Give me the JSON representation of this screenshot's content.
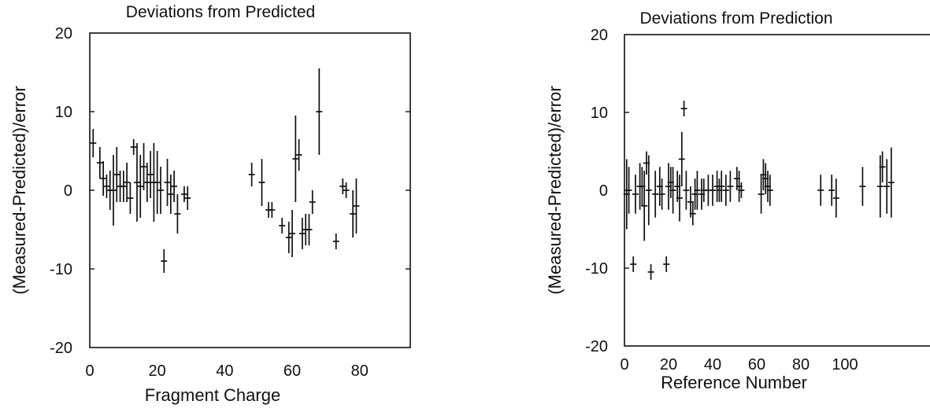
{
  "chart_data": [
    {
      "type": "scatter",
      "title": "Deviations from Predicted",
      "xlabel": "Fragment Charge",
      "ylabel": "(Measured-Predicted)/error",
      "xlim": [
        0,
        95
      ],
      "ylim": [
        -20,
        20
      ],
      "xticks": [
        "0",
        "20",
        "40",
        "60",
        "80"
      ],
      "xtick_values": [
        0,
        20,
        40,
        60,
        80
      ],
      "yticks": [
        "20",
        "10",
        "0",
        "-10",
        "-20"
      ],
      "ytick_values": [
        20,
        10,
        0,
        -10,
        -20
      ],
      "grid": false,
      "series": [
        {
          "points": [
            {
              "x": 1,
              "y": 6,
              "err": 1.8
            },
            {
              "x": 3,
              "y": 3.5,
              "err": 2
            },
            {
              "x": 4,
              "y": 1.5,
              "err": 2.2
            },
            {
              "x": 5,
              "y": 0.5,
              "err": 1.5
            },
            {
              "x": 6,
              "y": 0,
              "err": 2.5
            },
            {
              "x": 7,
              "y": 0,
              "err": 4.5
            },
            {
              "x": 8,
              "y": 2,
              "err": 3.5
            },
            {
              "x": 9,
              "y": 0.5,
              "err": 2
            },
            {
              "x": 10,
              "y": 0.5,
              "err": 2
            },
            {
              "x": 11,
              "y": 1,
              "err": 2.5
            },
            {
              "x": 12,
              "y": -1,
              "err": 2
            },
            {
              "x": 13,
              "y": 5.5,
              "err": 1
            },
            {
              "x": 14,
              "y": 1,
              "err": 5
            },
            {
              "x": 15,
              "y": 0.5,
              "err": 4
            },
            {
              "x": 16,
              "y": 3,
              "err": 3
            },
            {
              "x": 17,
              "y": 1,
              "err": 2.5
            },
            {
              "x": 18,
              "y": 2,
              "err": 3
            },
            {
              "x": 19,
              "y": 1,
              "err": 5
            },
            {
              "x": 20,
              "y": 1,
              "err": 4
            },
            {
              "x": 21,
              "y": 0,
              "err": 3
            },
            {
              "x": 22,
              "y": -9,
              "err": 1.5
            },
            {
              "x": 23,
              "y": 1,
              "err": 3
            },
            {
              "x": 24,
              "y": -0.5,
              "err": 2.5
            },
            {
              "x": 25,
              "y": 0.5,
              "err": 2
            },
            {
              "x": 26,
              "y": -3,
              "err": 2.5
            },
            {
              "x": 28,
              "y": -0.5,
              "err": 1
            },
            {
              "x": 29,
              "y": -1,
              "err": 1.5
            },
            {
              "x": 48,
              "y": 2,
              "err": 1.5
            },
            {
              "x": 51,
              "y": 1,
              "err": 3
            },
            {
              "x": 53,
              "y": -2.5,
              "err": 1
            },
            {
              "x": 54,
              "y": -2.5,
              "err": 1
            },
            {
              "x": 57,
              "y": -4.5,
              "err": 1
            },
            {
              "x": 59,
              "y": -6,
              "err": 2
            },
            {
              "x": 60,
              "y": -5.5,
              "err": 3
            },
            {
              "x": 61,
              "y": 4,
              "err": 5.5
            },
            {
              "x": 62,
              "y": 4.5,
              "err": 2
            },
            {
              "x": 63,
              "y": -5.5,
              "err": 2
            },
            {
              "x": 64,
              "y": -5,
              "err": 2
            },
            {
              "x": 65,
              "y": -5,
              "err": 2
            },
            {
              "x": 66,
              "y": -1.5,
              "err": 1.5
            },
            {
              "x": 68,
              "y": 10,
              "err": 5.5
            },
            {
              "x": 73,
              "y": -6.5,
              "err": 1
            },
            {
              "x": 75,
              "y": 0.5,
              "err": 1
            },
            {
              "x": 76,
              "y": 0,
              "err": 1
            },
            {
              "x": 78,
              "y": -3,
              "err": 3
            },
            {
              "x": 79,
              "y": -2,
              "err": 3.5
            }
          ]
        }
      ]
    },
    {
      "type": "scatter",
      "title": "Deviations from Prediction",
      "xlabel": "Reference Number",
      "ylabel": "(Measured-Predicted)/error",
      "xlim": [
        0,
        150
      ],
      "ylim": [
        -20,
        20
      ],
      "xticks": [
        "0",
        "20",
        "40",
        "60",
        "80",
        "100"
      ],
      "xtick_values": [
        0,
        20,
        40,
        60,
        80,
        100
      ],
      "yticks": [
        "20",
        "10",
        "0",
        "-10",
        "-20"
      ],
      "ytick_values": [
        20,
        10,
        0,
        -10,
        -20
      ],
      "grid": false,
      "series": [
        {
          "points": [
            {
              "x": 1,
              "y": -0.5,
              "err": 4.5
            },
            {
              "x": 2,
              "y": 0,
              "err": 3
            },
            {
              "x": 4,
              "y": -9.5,
              "err": 1
            },
            {
              "x": 5,
              "y": -0.5,
              "err": 2.5
            },
            {
              "x": 7,
              "y": 0.5,
              "err": 3
            },
            {
              "x": 8,
              "y": 0.5,
              "err": 2.5
            },
            {
              "x": 9,
              "y": -2,
              "err": 4.5
            },
            {
              "x": 10,
              "y": 3.5,
              "err": 1.5
            },
            {
              "x": 11,
              "y": 0,
              "err": 4.5
            },
            {
              "x": 12,
              "y": -10.5,
              "err": 1
            },
            {
              "x": 14,
              "y": -0.5,
              "err": 3
            },
            {
              "x": 16,
              "y": 0.5,
              "err": 2.5
            },
            {
              "x": 17,
              "y": -0.5,
              "err": 2
            },
            {
              "x": 19,
              "y": -9.5,
              "err": 1
            },
            {
              "x": 20,
              "y": 0.5,
              "err": 3
            },
            {
              "x": 21,
              "y": 1,
              "err": 2
            },
            {
              "x": 22,
              "y": 0,
              "err": 3
            },
            {
              "x": 24,
              "y": 0.5,
              "err": 2
            },
            {
              "x": 25,
              "y": -1,
              "err": 3
            },
            {
              "x": 26,
              "y": 4,
              "err": 3.5
            },
            {
              "x": 27,
              "y": 10.5,
              "err": 1
            },
            {
              "x": 28,
              "y": 0,
              "err": 2.5
            },
            {
              "x": 30,
              "y": -1.5,
              "err": 2
            },
            {
              "x": 31,
              "y": -3,
              "err": 1.5
            },
            {
              "x": 32,
              "y": -0.5,
              "err": 2
            },
            {
              "x": 33,
              "y": 0,
              "err": 2.5
            },
            {
              "x": 35,
              "y": -0.5,
              "err": 2
            },
            {
              "x": 36,
              "y": 0,
              "err": 1.5
            },
            {
              "x": 38,
              "y": 0,
              "err": 2
            },
            {
              "x": 40,
              "y": 0,
              "err": 2
            },
            {
              "x": 42,
              "y": 0.5,
              "err": 2
            },
            {
              "x": 43,
              "y": 0,
              "err": 1.5
            },
            {
              "x": 44,
              "y": 0.5,
              "err": 2
            },
            {
              "x": 46,
              "y": 0,
              "err": 2
            },
            {
              "x": 48,
              "y": 0.5,
              "err": 2
            },
            {
              "x": 51,
              "y": 1.5,
              "err": 1.5
            },
            {
              "x": 52,
              "y": 0.5,
              "err": 2
            },
            {
              "x": 53,
              "y": 0,
              "err": 1
            },
            {
              "x": 62,
              "y": -0.5,
              "err": 2.5
            },
            {
              "x": 63,
              "y": 2,
              "err": 2
            },
            {
              "x": 64,
              "y": 1.5,
              "err": 2
            },
            {
              "x": 65,
              "y": 0.5,
              "err": 2
            },
            {
              "x": 66,
              "y": 0,
              "err": 2
            },
            {
              "x": 89,
              "y": 0,
              "err": 2
            },
            {
              "x": 94,
              "y": 0,
              "err": 2
            },
            {
              "x": 96,
              "y": -1,
              "err": 2.5
            },
            {
              "x": 108,
              "y": 0.5,
              "err": 2.5
            },
            {
              "x": 116,
              "y": 0.5,
              "err": 4
            },
            {
              "x": 117,
              "y": 3,
              "err": 2
            },
            {
              "x": 119,
              "y": 0.5,
              "err": 3.5
            },
            {
              "x": 121,
              "y": 1,
              "err": 4.5
            }
          ]
        }
      ]
    }
  ]
}
